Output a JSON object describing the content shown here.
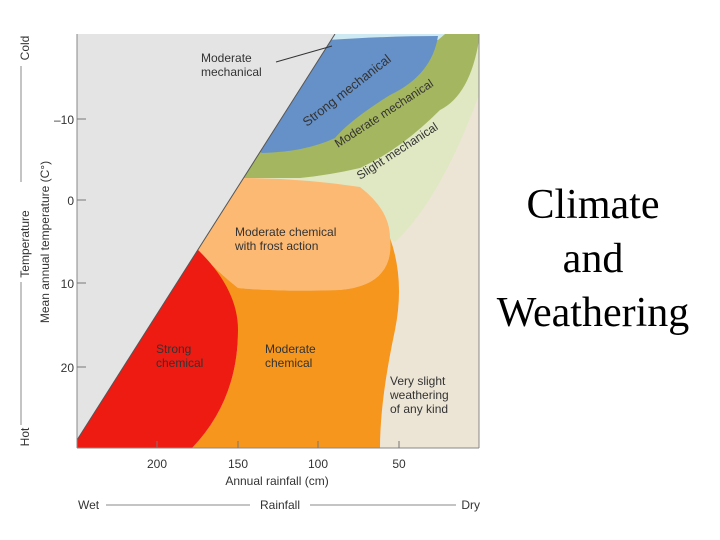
{
  "slide": {
    "title_lines": [
      "Climate",
      "and",
      "Weathering"
    ]
  },
  "diagram": {
    "y_axis": {
      "outer_top": "Cold",
      "outer_mid": "Temperature",
      "outer_bottom": "Hot",
      "label": "Mean annual temperature (C°)",
      "ticks": [
        "–10",
        "0",
        "10",
        "20"
      ]
    },
    "x_axis": {
      "label": "Annual rainfall (cm)",
      "ticks": [
        "200",
        "150",
        "100",
        "50"
      ],
      "outer_left": "Wet",
      "outer_mid": "Rainfall",
      "outer_right": "Dry"
    },
    "regions": {
      "moderate_mechanical": [
        "Moderate",
        "mechanical"
      ],
      "strong_mechanical": "Strong mechanical",
      "moderate_mechanical_band": "Moderate mechanical",
      "slight_mechanical": "Slight mechanical",
      "moderate_chemical_frost": [
        "Moderate chemical",
        "with frost action"
      ],
      "strong_chemical": [
        "Strong",
        "chemical"
      ],
      "moderate_chemical": [
        "Moderate",
        "chemical"
      ],
      "very_slight": [
        "Very slight",
        "weathering",
        "of any kind"
      ]
    },
    "colors": {
      "no_climate": "#e4e4e4",
      "very_slight": "#ece5d6",
      "slight_mechanical": "#dfe8c2",
      "moderate_mechanical": "#a5b661",
      "strong_mechanical": "#6591c8",
      "top_strip": "#cfe9f2",
      "moderate_chemical_frost": "#fcb974",
      "moderate_chemical": "#f6961c",
      "strong_chemical": "#ee1b13"
    }
  }
}
